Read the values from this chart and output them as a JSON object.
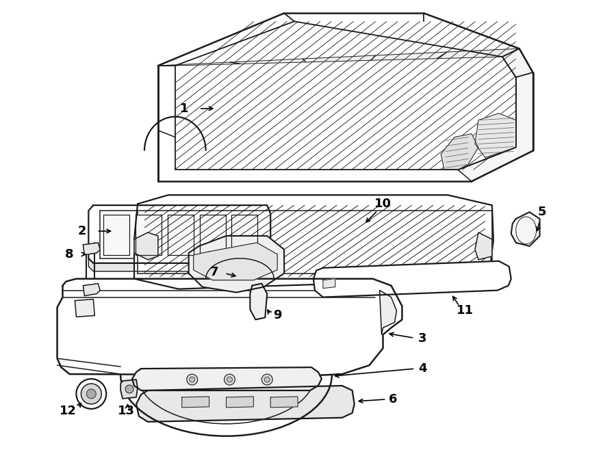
{
  "bg_color": "#ffffff",
  "lc": "#1a1a1a",
  "lw": 1.3,
  "fig_w": 9.0,
  "fig_h": 6.61,
  "dpi": 100
}
